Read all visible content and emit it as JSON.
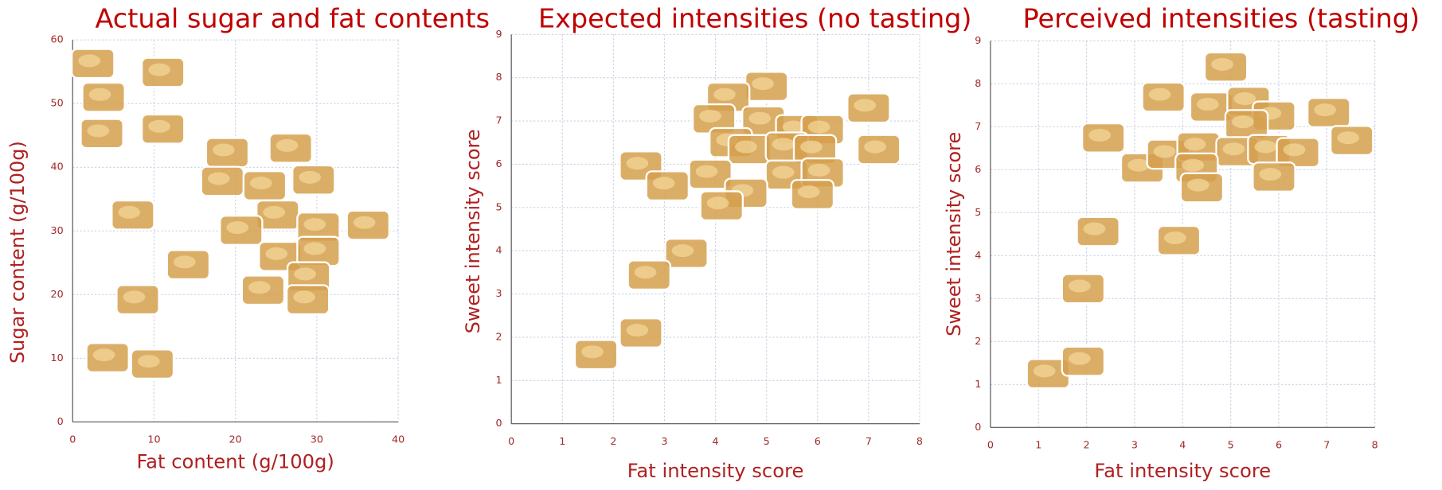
{
  "chart_data": [
    {
      "type": "scatter",
      "title": "Actual sugar and fat contents",
      "x_label": "Fat content (g/100g)",
      "y_label": "Sugar content (g/100g)",
      "xlim": [
        0,
        40
      ],
      "xticks": [
        0,
        10,
        20,
        30,
        40
      ],
      "ylim": [
        0,
        60
      ],
      "yticks": [
        0,
        10,
        20,
        30,
        40,
        50,
        60
      ],
      "grid": true,
      "color": "#d5a04e",
      "x": [
        2.5,
        11.1,
        3.8,
        3.6,
        11.1,
        19.0,
        26.8,
        18.4,
        23.6,
        29.6,
        7.4,
        25.2,
        36.3,
        20.7,
        30.2,
        25.5,
        30.2,
        14.2,
        29.0,
        8.0,
        23.4,
        28.9,
        4.3,
        9.8
      ],
      "y": [
        56.3,
        54.9,
        51.0,
        45.3,
        46.0,
        42.3,
        43.0,
        37.8,
        37.1,
        38.0,
        32.5,
        32.5,
        30.9,
        30.1,
        30.6,
        26.0,
        26.8,
        24.7,
        22.8,
        19.2,
        20.7,
        19.2,
        10.1,
        9.1
      ]
    },
    {
      "type": "scatter",
      "title": "Expected intensities (no tasting)",
      "x_label": "Fat intensity score",
      "y_label": "Sweet intensity score",
      "xlim": [
        0,
        8
      ],
      "xticks": [
        0,
        1,
        2,
        3,
        4,
        5,
        6,
        7,
        8
      ],
      "ylim": [
        0,
        9
      ],
      "yticks": [
        0,
        1,
        2,
        3,
        4,
        5,
        6,
        7,
        8,
        9
      ],
      "grid": true,
      "color": "#d5a04e",
      "x": [
        5.0,
        4.25,
        3.97,
        4.94,
        5.6,
        6.1,
        7.0,
        4.3,
        4.67,
        5.4,
        5.95,
        7.2,
        2.54,
        3.9,
        5.4,
        6.1,
        3.06,
        4.6,
        4.12,
        5.9,
        3.43,
        2.7,
        2.54,
        1.66
      ],
      "y": [
        7.8,
        7.55,
        7.05,
        7.0,
        6.8,
        6.8,
        7.3,
        6.5,
        6.34,
        6.4,
        6.34,
        6.34,
        5.96,
        5.77,
        5.75,
        5.8,
        5.5,
        5.33,
        5.04,
        5.3,
        3.94,
        3.44,
        2.1,
        1.6
      ]
    },
    {
      "type": "scatter",
      "title": "Perceived intensities (tasting)",
      "x_label": "Fat intensity score",
      "y_label": "Sweet intensity score",
      "xlim": [
        0,
        8
      ],
      "xticks": [
        0,
        1,
        2,
        3,
        4,
        5,
        6,
        7,
        8
      ],
      "ylim": [
        0,
        9
      ],
      "yticks": [
        0,
        1,
        2,
        3,
        4,
        5,
        6,
        7,
        8,
        9
      ],
      "grid": true,
      "color": "#d5a04e",
      "x": [
        4.9,
        3.6,
        4.6,
        5.37,
        5.9,
        7.04,
        5.33,
        2.35,
        7.52,
        3.16,
        3.7,
        4.33,
        5.14,
        5.8,
        6.4,
        4.29,
        5.9,
        4.4,
        2.24,
        3.92,
        1.93,
        1.2,
        1.93
      ],
      "y": [
        8.39,
        7.69,
        7.46,
        7.59,
        7.25,
        7.33,
        7.05,
        6.74,
        6.68,
        6.04,
        6.36,
        6.53,
        6.42,
        6.47,
        6.4,
        6.04,
        5.83,
        5.58,
        4.56,
        4.35,
        3.23,
        1.25,
        1.54
      ]
    }
  ]
}
